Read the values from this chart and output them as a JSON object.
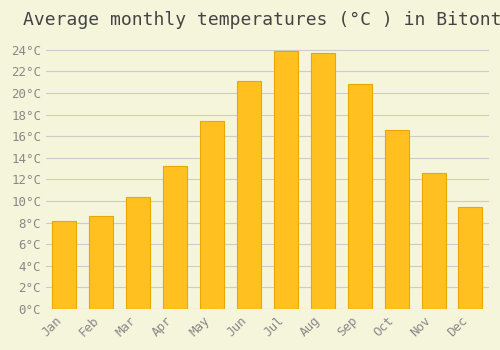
{
  "title": "Average monthly temperatures (°C ) in Bitonto",
  "months": [
    "Jan",
    "Feb",
    "Mar",
    "Apr",
    "May",
    "Jun",
    "Jul",
    "Aug",
    "Sep",
    "Oct",
    "Nov",
    "Dec"
  ],
  "values": [
    8.1,
    8.6,
    10.4,
    13.2,
    17.4,
    21.1,
    23.9,
    23.7,
    20.8,
    16.6,
    12.6,
    9.4
  ],
  "bar_color": "#FFC020",
  "bar_edge_color": "#E8A800",
  "background_color": "#F5F5DC",
  "grid_color": "#CCCCCC",
  "ylim": [
    0,
    25
  ],
  "ytick_step": 2,
  "title_fontsize": 13,
  "tick_fontsize": 9,
  "tick_color": "#888888",
  "axis_label_color": "#888888"
}
